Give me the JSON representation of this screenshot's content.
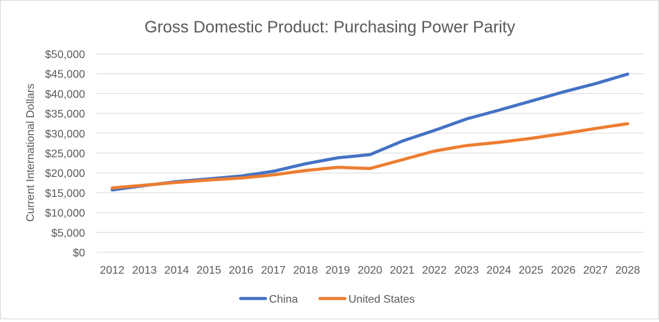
{
  "chart_data": {
    "type": "line",
    "title": "Gross Domestic Product: Purchasing Power Parity",
    "xlabel": "",
    "ylabel": "Current International Dollars",
    "ylim": [
      0,
      50000
    ],
    "yticks": [
      0,
      5000,
      10000,
      15000,
      20000,
      25000,
      30000,
      35000,
      40000,
      45000,
      50000
    ],
    "ytick_labels": [
      "$0",
      "$5,000",
      "$10,000",
      "$15,000",
      "$20,000",
      "$25,000",
      "$30,000",
      "$35,000",
      "$40,000",
      "$45,000",
      "$50,000"
    ],
    "grid": true,
    "legend_position": "bottom",
    "categories": [
      "2012",
      "2013",
      "2014",
      "2015",
      "2016",
      "2017",
      "2018",
      "2019",
      "2020",
      "2021",
      "2022",
      "2023",
      "2024",
      "2025",
      "2026",
      "2027",
      "2028"
    ],
    "series": [
      {
        "name": "China",
        "color": "#4472c4",
        "values": [
          15700,
          16800,
          17800,
          18500,
          19200,
          20400,
          22300,
          23800,
          24600,
          28000,
          30700,
          33600,
          35800,
          38100,
          40400,
          42500,
          44900
        ]
      },
      {
        "name": "United States",
        "color": "#ed7d31",
        "values": [
          16200,
          16900,
          17600,
          18200,
          18700,
          19500,
          20600,
          21400,
          21100,
          23300,
          25500,
          26900,
          27700,
          28700,
          29900,
          31200,
          32400
        ]
      }
    ]
  }
}
